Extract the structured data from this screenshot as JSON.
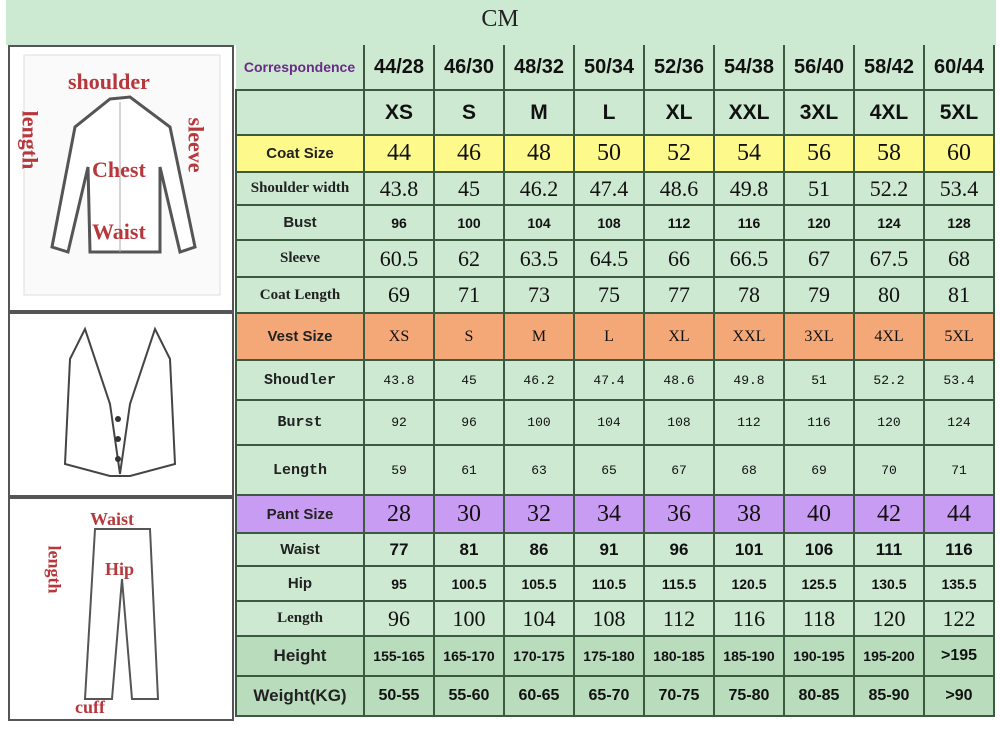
{
  "title": "CM",
  "diagram_labels": {
    "coat": [
      "shoulder",
      "length",
      "sleeve",
      "Chest",
      "Waist"
    ],
    "pant": [
      "Waist",
      "length",
      "Hip",
      "cuff"
    ]
  },
  "colors": {
    "background": "#cde9d1",
    "coat_header": "#fdf98a",
    "vest_header": "#f4a877",
    "pant_header": "#c89cf2",
    "fit_rows": "#b8dcbc",
    "size_letters": "#d4201a"
  },
  "rows": [
    {
      "label": "Correspondence",
      "values": [
        "44/28",
        "46/30",
        "48/32",
        "50/34",
        "52/36",
        "54/38",
        "56/40",
        "58/42",
        "60/44"
      ],
      "style": "corr"
    },
    {
      "label": "",
      "values": [
        "XS",
        "S",
        "M",
        "L",
        "XL",
        "XXL",
        "3XL",
        "4XL",
        "5XL"
      ],
      "style": "red"
    },
    {
      "label": "Coat Size",
      "values": [
        "44",
        "46",
        "48",
        "50",
        "52",
        "54",
        "56",
        "58",
        "60"
      ],
      "style": "coat"
    },
    {
      "label": "Shoulder width",
      "values": [
        "43.8",
        "45",
        "46.2",
        "47.4",
        "48.6",
        "49.8",
        "51",
        "52.2",
        "53.4"
      ],
      "style": "serif"
    },
    {
      "label": "Bust",
      "values": [
        "96",
        "100",
        "104",
        "108",
        "112",
        "116",
        "120",
        "124",
        "128"
      ],
      "style": "small"
    },
    {
      "label": "Sleeve",
      "values": [
        "60.5",
        "62",
        "63.5",
        "64.5",
        "66",
        "66.5",
        "67",
        "67.5",
        "68"
      ],
      "style": "serif"
    },
    {
      "label": "Coat Length",
      "values": [
        "69",
        "71",
        "73",
        "75",
        "77",
        "78",
        "79",
        "80",
        "81"
      ],
      "style": "serif"
    },
    {
      "label": "Vest Size",
      "values": [
        "XS",
        "S",
        "M",
        "L",
        "XL",
        "XXL",
        "3XL",
        "4XL",
        "5XL"
      ],
      "style": "vest"
    },
    {
      "label": "Shoudler",
      "values": [
        "43.8",
        "45",
        "46.2",
        "47.4",
        "48.6",
        "49.8",
        "51",
        "52.2",
        "53.4"
      ],
      "style": "mono"
    },
    {
      "label": "Burst",
      "values": [
        "92",
        "96",
        "100",
        "104",
        "108",
        "112",
        "116",
        "120",
        "124"
      ],
      "style": "mono"
    },
    {
      "label": "Length",
      "values": [
        "59",
        "61",
        "63",
        "65",
        "67",
        "68",
        "69",
        "70",
        "71"
      ],
      "style": "mono"
    },
    {
      "label": "Pant Size",
      "values": [
        "28",
        "30",
        "32",
        "34",
        "36",
        "38",
        "40",
        "42",
        "44"
      ],
      "style": "pant"
    },
    {
      "label": "Waist",
      "values": [
        "77",
        "81",
        "86",
        "91",
        "96",
        "101",
        "106",
        "111",
        "116"
      ],
      "style": "big"
    },
    {
      "label": "Hip",
      "values": [
        "95",
        "100.5",
        "105.5",
        "110.5",
        "115.5",
        "120.5",
        "125.5",
        "130.5",
        "135.5"
      ],
      "style": "small"
    },
    {
      "label": "Length",
      "values": [
        "96",
        "100",
        "104",
        "108",
        "112",
        "116",
        "118",
        "120",
        "122"
      ],
      "style": "serif"
    },
    {
      "label": "Height",
      "values": [
        "155-165",
        "165-170",
        "170-175",
        "175-180",
        "180-185",
        "185-190",
        "190-195",
        "195-200",
        ">195"
      ],
      "style": "fit"
    },
    {
      "label": "Weight(KG)",
      "values": [
        "50-55",
        "55-60",
        "60-65",
        "65-70",
        "70-75",
        "75-80",
        "80-85",
        "85-90",
        ">90"
      ],
      "style": "fit"
    }
  ]
}
